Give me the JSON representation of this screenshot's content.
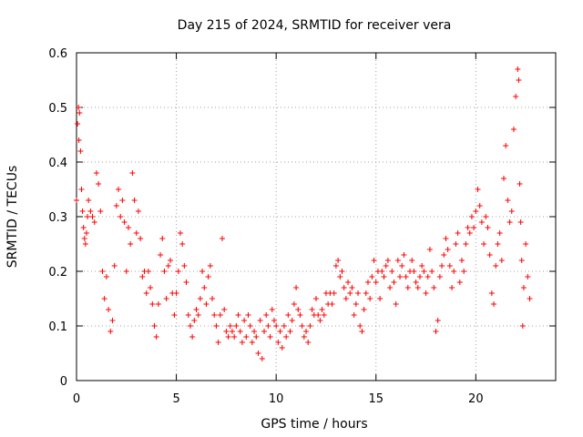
{
  "chart_data": {
    "type": "scatter",
    "title": "Day 215 of 2024, SRMTID for receiver vera",
    "xlabel": "GPS time / hours",
    "ylabel": "SRMTID / TECUs",
    "xlim": [
      0,
      24
    ],
    "ylim": [
      0,
      0.6
    ],
    "xticks": [
      0,
      5,
      10,
      15,
      20
    ],
    "xtick_labels": [
      "0",
      "5",
      "10",
      "15",
      "20"
    ],
    "yticks": [
      0,
      0.1,
      0.2,
      0.3,
      0.4,
      0.5,
      0.6
    ],
    "ytick_labels": [
      "0",
      "0.1",
      "0.2",
      "0.3",
      "0.4",
      "0.5",
      "0.6"
    ],
    "grid": true,
    "marker": "+",
    "color": "#ff0000",
    "series": [
      {
        "name": "SRMTID",
        "points": [
          [
            0.0,
            0.33
          ],
          [
            0.05,
            0.47
          ],
          [
            0.1,
            0.5
          ],
          [
            0.12,
            0.44
          ],
          [
            0.15,
            0.49
          ],
          [
            0.2,
            0.42
          ],
          [
            0.25,
            0.35
          ],
          [
            0.3,
            0.31
          ],
          [
            0.35,
            0.28
          ],
          [
            0.4,
            0.26
          ],
          [
            0.45,
            0.25
          ],
          [
            0.5,
            0.27
          ],
          [
            0.55,
            0.3
          ],
          [
            0.6,
            0.33
          ],
          [
            0.7,
            0.31
          ],
          [
            0.8,
            0.3
          ],
          [
            0.9,
            0.29
          ],
          [
            1.0,
            0.38
          ],
          [
            1.1,
            0.36
          ],
          [
            1.2,
            0.31
          ],
          [
            1.3,
            0.2
          ],
          [
            1.4,
            0.15
          ],
          [
            1.5,
            0.19
          ],
          [
            1.6,
            0.13
          ],
          [
            1.7,
            0.09
          ],
          [
            1.8,
            0.11
          ],
          [
            1.9,
            0.21
          ],
          [
            2.0,
            0.32
          ],
          [
            2.1,
            0.35
          ],
          [
            2.2,
            0.3
          ],
          [
            2.3,
            0.33
          ],
          [
            2.4,
            0.29
          ],
          [
            2.5,
            0.2
          ],
          [
            2.6,
            0.28
          ],
          [
            2.7,
            0.25
          ],
          [
            2.8,
            0.38
          ],
          [
            2.9,
            0.33
          ],
          [
            3.0,
            0.27
          ],
          [
            3.1,
            0.31
          ],
          [
            3.2,
            0.26
          ],
          [
            3.3,
            0.19
          ],
          [
            3.4,
            0.2
          ],
          [
            3.5,
            0.16
          ],
          [
            3.6,
            0.2
          ],
          [
            3.7,
            0.17
          ],
          [
            3.8,
            0.14
          ],
          [
            3.9,
            0.1
          ],
          [
            4.0,
            0.08
          ],
          [
            4.1,
            0.14
          ],
          [
            4.2,
            0.23
          ],
          [
            4.3,
            0.26
          ],
          [
            4.4,
            0.2
          ],
          [
            4.5,
            0.15
          ],
          [
            4.6,
            0.21
          ],
          [
            4.7,
            0.22
          ],
          [
            4.8,
            0.16
          ],
          [
            4.9,
            0.12
          ],
          [
            5.0,
            0.16
          ],
          [
            5.1,
            0.2
          ],
          [
            5.2,
            0.27
          ],
          [
            5.3,
            0.25
          ],
          [
            5.4,
            0.21
          ],
          [
            5.5,
            0.18
          ],
          [
            5.6,
            0.12
          ],
          [
            5.7,
            0.1
          ],
          [
            5.8,
            0.08
          ],
          [
            5.9,
            0.11
          ],
          [
            6.0,
            0.13
          ],
          [
            6.1,
            0.12
          ],
          [
            6.2,
            0.15
          ],
          [
            6.3,
            0.2
          ],
          [
            6.4,
            0.17
          ],
          [
            6.5,
            0.14
          ],
          [
            6.6,
            0.19
          ],
          [
            6.7,
            0.21
          ],
          [
            6.8,
            0.15
          ],
          [
            6.9,
            0.12
          ],
          [
            7.0,
            0.1
          ],
          [
            7.1,
            0.07
          ],
          [
            7.2,
            0.12
          ],
          [
            7.3,
            0.26
          ],
          [
            7.4,
            0.13
          ],
          [
            7.5,
            0.09
          ],
          [
            7.6,
            0.08
          ],
          [
            7.7,
            0.1
          ],
          [
            7.8,
            0.09
          ],
          [
            7.9,
            0.08
          ],
          [
            8.0,
            0.1
          ],
          [
            8.1,
            0.12
          ],
          [
            8.2,
            0.09
          ],
          [
            8.3,
            0.07
          ],
          [
            8.4,
            0.11
          ],
          [
            8.5,
            0.08
          ],
          [
            8.6,
            0.12
          ],
          [
            8.7,
            0.1
          ],
          [
            8.8,
            0.07
          ],
          [
            8.9,
            0.09
          ],
          [
            9.0,
            0.08
          ],
          [
            9.1,
            0.05
          ],
          [
            9.2,
            0.11
          ],
          [
            9.3,
            0.04
          ],
          [
            9.4,
            0.09
          ],
          [
            9.5,
            0.12
          ],
          [
            9.6,
            0.1
          ],
          [
            9.7,
            0.08
          ],
          [
            9.8,
            0.13
          ],
          [
            9.9,
            0.11
          ],
          [
            10.0,
            0.1
          ],
          [
            10.1,
            0.07
          ],
          [
            10.2,
            0.09
          ],
          [
            10.3,
            0.06
          ],
          [
            10.4,
            0.1
          ],
          [
            10.5,
            0.08
          ],
          [
            10.6,
            0.12
          ],
          [
            10.7,
            0.09
          ],
          [
            10.8,
            0.11
          ],
          [
            10.9,
            0.14
          ],
          [
            11.0,
            0.17
          ],
          [
            11.1,
            0.13
          ],
          [
            11.2,
            0.12
          ],
          [
            11.3,
            0.1
          ],
          [
            11.4,
            0.08
          ],
          [
            11.5,
            0.09
          ],
          [
            11.6,
            0.07
          ],
          [
            11.7,
            0.1
          ],
          [
            11.8,
            0.13
          ],
          [
            11.9,
            0.12
          ],
          [
            12.0,
            0.15
          ],
          [
            12.1,
            0.12
          ],
          [
            12.2,
            0.11
          ],
          [
            12.3,
            0.13
          ],
          [
            12.4,
            0.12
          ],
          [
            12.5,
            0.16
          ],
          [
            12.6,
            0.14
          ],
          [
            12.7,
            0.16
          ],
          [
            12.8,
            0.14
          ],
          [
            12.9,
            0.16
          ],
          [
            13.0,
            0.21
          ],
          [
            13.1,
            0.22
          ],
          [
            13.2,
            0.19
          ],
          [
            13.3,
            0.2
          ],
          [
            13.4,
            0.17
          ],
          [
            13.5,
            0.15
          ],
          [
            13.6,
            0.18
          ],
          [
            13.7,
            0.16
          ],
          [
            13.8,
            0.17
          ],
          [
            13.9,
            0.12
          ],
          [
            14.0,
            0.14
          ],
          [
            14.1,
            0.16
          ],
          [
            14.2,
            0.1
          ],
          [
            14.3,
            0.09
          ],
          [
            14.4,
            0.13
          ],
          [
            14.5,
            0.16
          ],
          [
            14.6,
            0.18
          ],
          [
            14.7,
            0.15
          ],
          [
            14.8,
            0.19
          ],
          [
            14.9,
            0.22
          ],
          [
            15.0,
            0.18
          ],
          [
            15.1,
            0.2
          ],
          [
            15.2,
            0.15
          ],
          [
            15.3,
            0.2
          ],
          [
            15.4,
            0.19
          ],
          [
            15.5,
            0.21
          ],
          [
            15.6,
            0.22
          ],
          [
            15.7,
            0.17
          ],
          [
            15.8,
            0.2
          ],
          [
            15.9,
            0.18
          ],
          [
            16.0,
            0.14
          ],
          [
            16.1,
            0.22
          ],
          [
            16.2,
            0.19
          ],
          [
            16.3,
            0.21
          ],
          [
            16.4,
            0.23
          ],
          [
            16.5,
            0.19
          ],
          [
            16.6,
            0.17
          ],
          [
            16.7,
            0.2
          ],
          [
            16.8,
            0.22
          ],
          [
            16.9,
            0.2
          ],
          [
            17.0,
            0.18
          ],
          [
            17.1,
            0.17
          ],
          [
            17.2,
            0.19
          ],
          [
            17.3,
            0.21
          ],
          [
            17.4,
            0.2
          ],
          [
            17.5,
            0.16
          ],
          [
            17.6,
            0.19
          ],
          [
            17.7,
            0.24
          ],
          [
            17.8,
            0.2
          ],
          [
            17.9,
            0.17
          ],
          [
            18.0,
            0.09
          ],
          [
            18.1,
            0.11
          ],
          [
            18.2,
            0.19
          ],
          [
            18.3,
            0.21
          ],
          [
            18.4,
            0.23
          ],
          [
            18.5,
            0.26
          ],
          [
            18.6,
            0.24
          ],
          [
            18.7,
            0.21
          ],
          [
            18.8,
            0.17
          ],
          [
            18.9,
            0.2
          ],
          [
            19.0,
            0.25
          ],
          [
            19.1,
            0.27
          ],
          [
            19.2,
            0.18
          ],
          [
            19.3,
            0.22
          ],
          [
            19.4,
            0.2
          ],
          [
            19.5,
            0.25
          ],
          [
            19.6,
            0.28
          ],
          [
            19.7,
            0.27
          ],
          [
            19.8,
            0.3
          ],
          [
            19.9,
            0.28
          ],
          [
            20.0,
            0.31
          ],
          [
            20.1,
            0.35
          ],
          [
            20.2,
            0.32
          ],
          [
            20.3,
            0.29
          ],
          [
            20.4,
            0.25
          ],
          [
            20.5,
            0.3
          ],
          [
            20.6,
            0.28
          ],
          [
            20.7,
            0.23
          ],
          [
            20.8,
            0.16
          ],
          [
            20.9,
            0.14
          ],
          [
            21.0,
            0.21
          ],
          [
            21.1,
            0.25
          ],
          [
            21.2,
            0.27
          ],
          [
            21.3,
            0.22
          ],
          [
            21.4,
            0.37
          ],
          [
            21.5,
            0.43
          ],
          [
            21.6,
            0.33
          ],
          [
            21.7,
            0.29
          ],
          [
            21.8,
            0.31
          ],
          [
            21.9,
            0.46
          ],
          [
            22.0,
            0.52
          ],
          [
            22.1,
            0.57
          ],
          [
            22.15,
            0.55
          ],
          [
            22.2,
            0.36
          ],
          [
            22.25,
            0.29
          ],
          [
            22.3,
            0.22
          ],
          [
            22.35,
            0.1
          ],
          [
            22.4,
            0.17
          ],
          [
            22.5,
            0.25
          ],
          [
            22.6,
            0.19
          ],
          [
            22.7,
            0.15
          ]
        ]
      }
    ]
  }
}
